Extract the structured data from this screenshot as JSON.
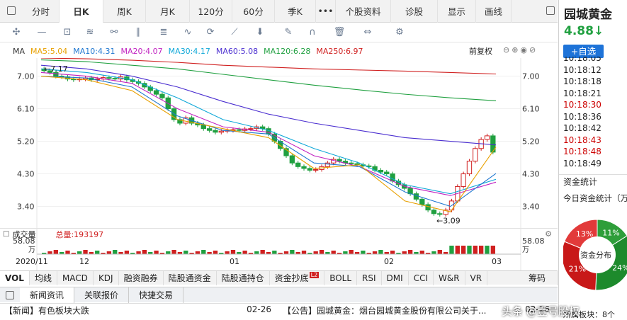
{
  "tabs": [
    "分时",
    "日K",
    "周K",
    "月K",
    "120分",
    "60分",
    "季K",
    "•••",
    "个股资料",
    "诊股",
    "显示",
    "画线"
  ],
  "active_tab": "日K",
  "ma_legend": [
    {
      "label": "MA",
      "color": "#333333"
    },
    {
      "label": "MA5:5.04",
      "color": "#e8a000"
    },
    {
      "label": "MA10:4.31",
      "color": "#1f77d0"
    },
    {
      "label": "MA20:4.07",
      "color": "#c020c0"
    },
    {
      "label": "MA30:4.17",
      "color": "#10a8d8"
    },
    {
      "label": "MA60:5.08",
      "color": "#4a2ed0"
    },
    {
      "label": "MA120:6.28",
      "color": "#20a040"
    },
    {
      "label": "MA250:6.97",
      "color": "#d02020"
    }
  ],
  "adjust_label": "前复权",
  "price_ticks": [
    "7.00",
    "6.10",
    "5.20",
    "4.30",
    "3.40"
  ],
  "annotations": {
    "high": "7.17",
    "low": "3.09"
  },
  "volume": {
    "label": "成交量",
    "total_label": "总量:193197",
    "scale_value": "58.08",
    "scale_unit": "万"
  },
  "date_labels": [
    "2020/11",
    "12",
    "01",
    "02",
    "03"
  ],
  "indicators": [
    "VOL",
    "均线",
    "MACD",
    "KDJ",
    "融资融券",
    "陆股通资金",
    "陆股通持仓",
    "资金抄底",
    "BOLL",
    "RSI",
    "DMI",
    "CCI",
    "W&R",
    "VR",
    "筹码"
  ],
  "indicator_badge": "L2",
  "news_tabs": [
    "新闻资讯",
    "关联报价",
    "快捷交易"
  ],
  "news": [
    {
      "tag": "【新闻】",
      "text": "有色板块大跌",
      "date": "02-26"
    },
    {
      "tag": "【公告】",
      "text": "园城黄金：烟台园城黄金股份有限公司关于...",
      "date": "02-26"
    }
  ],
  "watermark": "头条 @壹号股权",
  "stock": {
    "name": "园城黄金",
    "price": "4.88",
    "arrow": "↓",
    "add_label": "+自选"
  },
  "ticks": [
    {
      "time": "10:18:05",
      "flag": ""
    },
    {
      "time": "10:18:12",
      "flag": "涉"
    },
    {
      "time": "10:18:18",
      "flag": ""
    },
    {
      "time": "10:18:21",
      "flag": ""
    },
    {
      "time": "10:18:30",
      "flag": "阝"
    },
    {
      "time": "10:18:36",
      "flag": ""
    },
    {
      "time": "10:18:42",
      "flag": "朋"
    },
    {
      "time": "10:18:43",
      "flag": "涉"
    },
    {
      "time": "10:18:48",
      "flag": "宠"
    },
    {
      "time": "10:18:49",
      "flag": ""
    }
  ],
  "fund": {
    "title": "资金统计",
    "subtitle": "今日资金统计（万",
    "donut_label": "资金分布",
    "slices": [
      {
        "label": "11%",
        "value": 11,
        "color": "#2e9e3a"
      },
      {
        "label": "24%",
        "value": 24,
        "color": "#1d8a2c"
      },
      {
        "label": "21%",
        "value": 21,
        "color": "#c81818"
      },
      {
        "label": "13%",
        "value": 13,
        "color": "#e23a3a"
      }
    ],
    "footer": "所属板块：8个"
  }
}
